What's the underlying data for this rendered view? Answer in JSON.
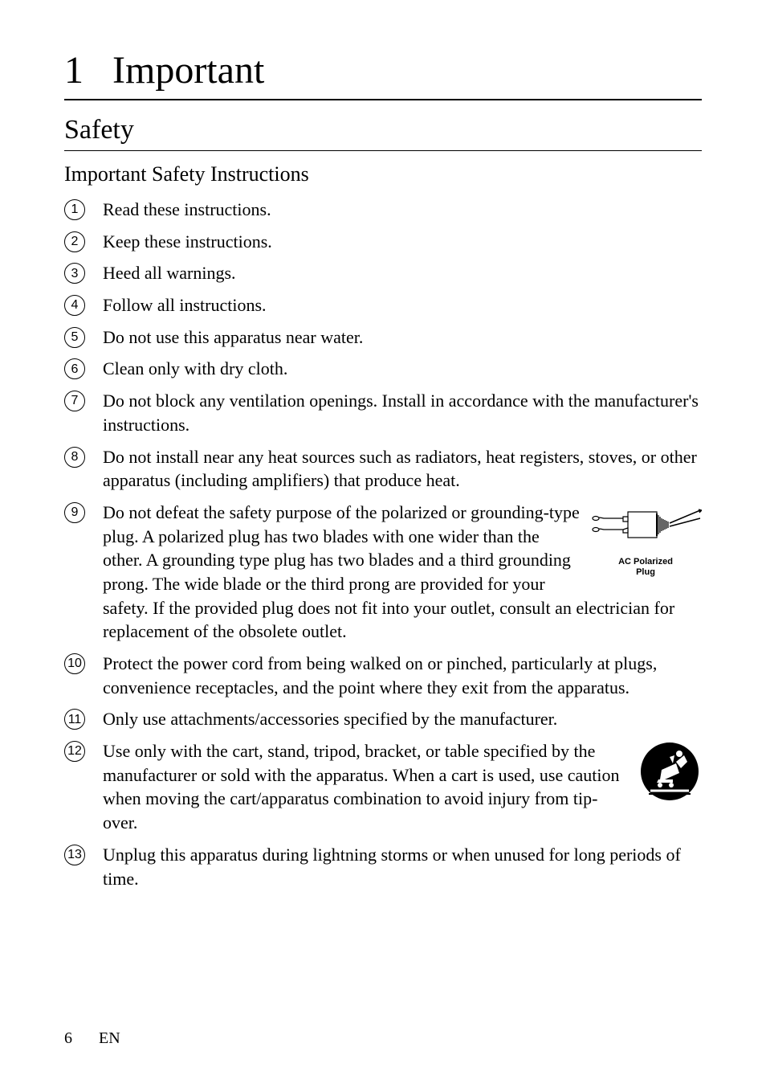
{
  "chapter": {
    "number": "1",
    "title": "Important"
  },
  "section": {
    "title": "Safety"
  },
  "subsection": {
    "title": "Important Safety Instructions"
  },
  "instructions": [
    {
      "num": "1",
      "text": "Read these instructions."
    },
    {
      "num": "2",
      "text": "Keep these instructions."
    },
    {
      "num": "3",
      "text": "Heed all warnings."
    },
    {
      "num": "4",
      "text": "Follow all instructions."
    },
    {
      "num": "5",
      "text": "Do not use this apparatus near water."
    },
    {
      "num": "6",
      "text": "Clean only with dry cloth."
    },
    {
      "num": "7",
      "text": "Do not block any ventilation openings. Install in accordance with the manufacturer's instructions."
    },
    {
      "num": "8",
      "text": "Do not install near any heat sources such as radiators, heat registers, stoves, or other apparatus (including amplifiers) that produce heat."
    },
    {
      "num": "9",
      "text": "Do not defeat the safety purpose of the polarized or grounding-type plug. A polarized plug has two blades with one wider than the other. A grounding type plug has two blades and a third grounding prong. The wide blade or the third prong are provided for your safety. If the provided plug does not fit into your outlet, consult an electrician for replacement of the obsolete outlet.",
      "figure": "plug",
      "figure_label_1": "AC Polarized",
      "figure_label_2": "Plug",
      "wrap_lines": 4
    },
    {
      "num": "10",
      "text": "Protect the power cord from being walked on or pinched, particularly at plugs, convenience receptacles, and the point where they exit from the apparatus."
    },
    {
      "num": "11",
      "text": "Only use attachments/accessories specified by the manufacturer."
    },
    {
      "num": "12",
      "text": "Use only with the cart, stand, tripod, bracket, or table specified by the manufacturer or sold with the apparatus. When a cart is used, use caution when moving the cart/apparatus combination to avoid injury from tip-over.",
      "figure": "cart"
    },
    {
      "num": "13",
      "text": "Unplug this apparatus during lightning storms or when unused for long periods of time."
    }
  ],
  "footer": {
    "page": "6",
    "lang": "EN"
  },
  "colors": {
    "text": "#000000",
    "background": "#ffffff"
  },
  "typography": {
    "title_size": 48,
    "section_size": 34,
    "subsection_size": 26,
    "body_size": 22
  }
}
